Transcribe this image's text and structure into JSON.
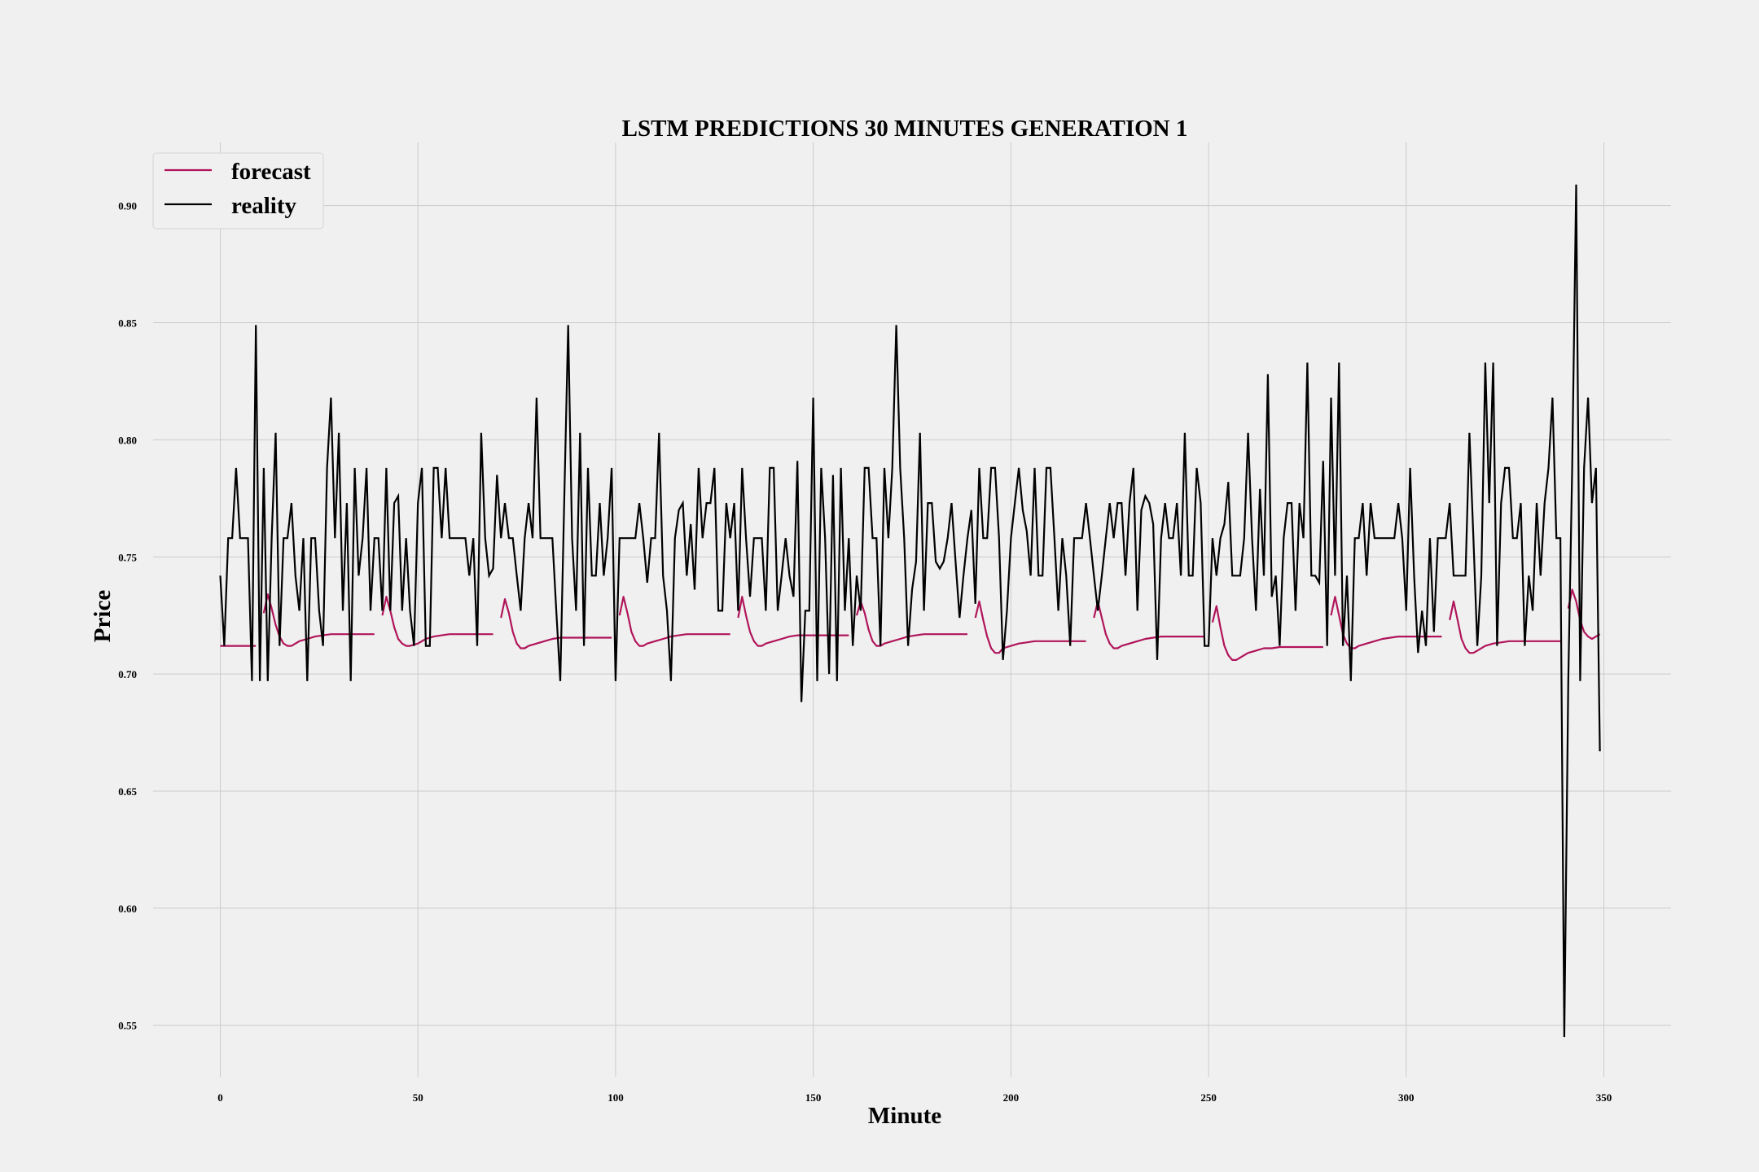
{
  "chart_data": {
    "type": "line",
    "title": "LSTM PREDICTIONS 30 MINUTES GENERATION 1",
    "xlabel": "Minute",
    "ylabel": "Price",
    "xlim": [
      -17,
      367
    ],
    "ylim": [
      0.528,
      0.927
    ],
    "xticks": [
      0,
      50,
      100,
      150,
      200,
      250,
      300,
      350
    ],
    "xtick_labels": [
      "0",
      "50",
      "100",
      "150",
      "200",
      "250",
      "300",
      "350"
    ],
    "yticks": [
      0.55,
      0.6,
      0.65,
      0.7,
      0.75,
      0.8,
      0.85,
      0.9
    ],
    "ytick_labels": [
      "0.55",
      "0.60",
      "0.65",
      "0.70",
      "0.75",
      "0.80",
      "0.85",
      "0.90"
    ],
    "grid": true,
    "legend_position": "top-left",
    "colors": {
      "forecast": "#b0145a",
      "reality": "#000000",
      "background": "#f0f0f0",
      "grid": "#cbcbcb"
    },
    "series": [
      {
        "name": "forecast",
        "segments": [
          {
            "x": [
              0,
              1,
              2,
              3,
              4,
              5,
              6,
              7,
              8,
              9
            ],
            "y": [
              0.712,
              0.712,
              0.712,
              0.712,
              0.712,
              0.712,
              0.712,
              0.712,
              0.712,
              0.712
            ]
          },
          {
            "x": [
              11,
              12,
              13,
              14,
              15,
              16,
              17,
              18,
              19,
              20,
              22,
              24,
              26,
              28,
              30,
              32,
              34,
              36,
              39
            ],
            "y": [
              0.726,
              0.734,
              0.728,
              0.721,
              0.716,
              0.713,
              0.712,
              0.712,
              0.713,
              0.714,
              0.715,
              0.716,
              0.7165,
              0.717,
              0.717,
              0.717,
              0.717,
              0.717,
              0.717
            ]
          },
          {
            "x": [
              41,
              42,
              43,
              44,
              45,
              46,
              47,
              48,
              50,
              52,
              54,
              56,
              58,
              60,
              62,
              65,
              69
            ],
            "y": [
              0.725,
              0.733,
              0.727,
              0.72,
              0.715,
              0.713,
              0.712,
              0.712,
              0.713,
              0.715,
              0.716,
              0.7165,
              0.717,
              0.717,
              0.717,
              0.717,
              0.717
            ]
          },
          {
            "x": [
              71,
              72,
              73,
              74,
              75,
              76,
              77,
              78,
              80,
              82,
              84,
              86,
              88,
              90,
              94,
              99
            ],
            "y": [
              0.724,
              0.732,
              0.726,
              0.718,
              0.713,
              0.711,
              0.711,
              0.712,
              0.713,
              0.714,
              0.715,
              0.7155,
              0.7155,
              0.7155,
              0.7155,
              0.7155
            ]
          },
          {
            "x": [
              101,
              102,
              103,
              104,
              105,
              106,
              107,
              108,
              110,
              112,
              114,
              116,
              118,
              120,
              124,
              129
            ],
            "y": [
              0.725,
              0.733,
              0.726,
              0.718,
              0.714,
              0.712,
              0.712,
              0.713,
              0.714,
              0.715,
              0.716,
              0.7165,
              0.717,
              0.717,
              0.717,
              0.717
            ]
          },
          {
            "x": [
              131,
              132,
              133,
              134,
              135,
              136,
              137,
              138,
              140,
              142,
              144,
              146,
              148,
              150,
              154,
              159
            ],
            "y": [
              0.724,
              0.733,
              0.725,
              0.718,
              0.714,
              0.712,
              0.712,
              0.713,
              0.714,
              0.715,
              0.716,
              0.7165,
              0.7165,
              0.7165,
              0.7165,
              0.7165
            ]
          },
          {
            "x": [
              161,
              162,
              163,
              164,
              165,
              166,
              167,
              168,
              170,
              172,
              174,
              176,
              178,
              180,
              184,
              189
            ],
            "y": [
              0.725,
              0.731,
              0.726,
              0.719,
              0.714,
              0.712,
              0.712,
              0.713,
              0.714,
              0.715,
              0.716,
              0.7165,
              0.717,
              0.717,
              0.717,
              0.717
            ]
          },
          {
            "x": [
              191,
              192,
              193,
              194,
              195,
              196,
              197,
              198,
              200,
              202,
              204,
              206,
              208,
              210,
              214,
              219
            ],
            "y": [
              0.724,
              0.731,
              0.723,
              0.716,
              0.711,
              0.709,
              0.709,
              0.711,
              0.712,
              0.713,
              0.7135,
              0.714,
              0.714,
              0.714,
              0.714,
              0.714
            ]
          },
          {
            "x": [
              221,
              222,
              223,
              224,
              225,
              226,
              227,
              228,
              230,
              232,
              234,
              236,
              238,
              240,
              244,
              249
            ],
            "y": [
              0.724,
              0.731,
              0.724,
              0.717,
              0.713,
              0.711,
              0.711,
              0.712,
              0.713,
              0.714,
              0.715,
              0.7155,
              0.716,
              0.716,
              0.716,
              0.716
            ]
          },
          {
            "x": [
              251,
              252,
              253,
              254,
              255,
              256,
              257,
              258,
              260,
              262,
              264,
              266,
              268,
              270,
              274,
              279
            ],
            "y": [
              0.722,
              0.729,
              0.72,
              0.712,
              0.708,
              0.706,
              0.706,
              0.707,
              0.709,
              0.71,
              0.711,
              0.711,
              0.7115,
              0.7115,
              0.7115,
              0.7115
            ]
          },
          {
            "x": [
              281,
              282,
              283,
              284,
              285,
              286,
              287,
              288,
              290,
              292,
              294,
              296,
              298,
              300,
              304,
              309
            ],
            "y": [
              0.725,
              0.733,
              0.725,
              0.717,
              0.713,
              0.711,
              0.711,
              0.712,
              0.713,
              0.714,
              0.715,
              0.7155,
              0.716,
              0.716,
              0.716,
              0.716
            ]
          },
          {
            "x": [
              311,
              312,
              313,
              314,
              315,
              316,
              317,
              318,
              320,
              322,
              324,
              326,
              328,
              330,
              334,
              339
            ],
            "y": [
              0.723,
              0.731,
              0.723,
              0.715,
              0.711,
              0.709,
              0.709,
              0.71,
              0.712,
              0.713,
              0.7135,
              0.714,
              0.714,
              0.714,
              0.714,
              0.714
            ]
          },
          {
            "x": [
              341,
              342,
              343,
              344,
              345,
              346,
              347,
              348,
              349
            ],
            "y": [
              0.728,
              0.736,
              0.731,
              0.723,
              0.718,
              0.716,
              0.715,
              0.716,
              0.717
            ]
          }
        ]
      },
      {
        "name": "reality",
        "x_start": 0,
        "y": [
          0.742,
          0.712,
          0.758,
          0.758,
          0.788,
          0.758,
          0.758,
          0.758,
          0.697,
          0.849,
          0.697,
          0.788,
          0.697,
          0.758,
          0.803,
          0.712,
          0.758,
          0.758,
          0.773,
          0.742,
          0.727,
          0.758,
          0.697,
          0.758,
          0.758,
          0.727,
          0.712,
          0.788,
          0.818,
          0.758,
          0.803,
          0.727,
          0.773,
          0.697,
          0.788,
          0.742,
          0.758,
          0.788,
          0.727,
          0.758,
          0.758,
          0.727,
          0.788,
          0.727,
          0.773,
          0.776,
          0.727,
          0.758,
          0.727,
          0.712,
          0.773,
          0.788,
          0.712,
          0.712,
          0.788,
          0.788,
          0.758,
          0.788,
          0.758,
          0.758,
          0.758,
          0.758,
          0.758,
          0.742,
          0.758,
          0.712,
          0.803,
          0.758,
          0.742,
          0.745,
          0.785,
          0.758,
          0.773,
          0.758,
          0.758,
          0.742,
          0.727,
          0.758,
          0.773,
          0.758,
          0.818,
          0.758,
          0.758,
          0.758,
          0.758,
          0.727,
          0.697,
          0.773,
          0.849,
          0.758,
          0.727,
          0.803,
          0.712,
          0.788,
          0.742,
          0.742,
          0.773,
          0.742,
          0.758,
          0.788,
          0.697,
          0.758,
          0.758,
          0.758,
          0.758,
          0.758,
          0.773,
          0.758,
          0.739,
          0.758,
          0.758,
          0.803,
          0.742,
          0.727,
          0.697,
          0.758,
          0.77,
          0.773,
          0.742,
          0.764,
          0.736,
          0.788,
          0.758,
          0.773,
          0.773,
          0.788,
          0.727,
          0.727,
          0.773,
          0.758,
          0.773,
          0.727,
          0.788,
          0.758,
          0.733,
          0.758,
          0.758,
          0.758,
          0.727,
          0.788,
          0.788,
          0.727,
          0.742,
          0.758,
          0.742,
          0.733,
          0.791,
          0.688,
          0.727,
          0.727,
          0.818,
          0.697,
          0.788,
          0.758,
          0.7,
          0.785,
          0.697,
          0.788,
          0.727,
          0.758,
          0.712,
          0.742,
          0.727,
          0.788,
          0.788,
          0.758,
          0.758,
          0.712,
          0.788,
          0.758,
          0.788,
          0.849,
          0.788,
          0.758,
          0.712,
          0.736,
          0.748,
          0.803,
          0.727,
          0.773,
          0.773,
          0.748,
          0.745,
          0.748,
          0.758,
          0.773,
          0.748,
          0.724,
          0.742,
          0.758,
          0.77,
          0.73,
          0.788,
          0.758,
          0.758,
          0.788,
          0.788,
          0.758,
          0.706,
          0.727,
          0.758,
          0.773,
          0.788,
          0.77,
          0.761,
          0.742,
          0.788,
          0.742,
          0.742,
          0.788,
          0.788,
          0.758,
          0.727,
          0.758,
          0.742,
          0.712,
          0.758,
          0.758,
          0.758,
          0.773,
          0.758,
          0.742,
          0.727,
          0.742,
          0.758,
          0.773,
          0.758,
          0.773,
          0.773,
          0.742,
          0.773,
          0.788,
          0.727,
          0.77,
          0.776,
          0.773,
          0.764,
          0.706,
          0.758,
          0.773,
          0.758,
          0.758,
          0.773,
          0.742,
          0.803,
          0.742,
          0.742,
          0.788,
          0.773,
          0.712,
          0.712,
          0.758,
          0.742,
          0.758,
          0.764,
          0.782,
          0.742,
          0.742,
          0.742,
          0.758,
          0.803,
          0.758,
          0.727,
          0.779,
          0.742,
          0.828,
          0.733,
          0.742,
          0.712,
          0.758,
          0.773,
          0.773,
          0.727,
          0.773,
          0.758,
          0.833,
          0.742,
          0.742,
          0.739,
          0.791,
          0.712,
          0.818,
          0.742,
          0.833,
          0.712,
          0.742,
          0.697,
          0.758,
          0.758,
          0.773,
          0.742,
          0.773,
          0.758,
          0.758,
          0.758,
          0.758,
          0.758,
          0.758,
          0.773,
          0.758,
          0.727,
          0.788,
          0.742,
          0.709,
          0.727,
          0.712,
          0.758,
          0.718,
          0.758,
          0.758,
          0.758,
          0.773,
          0.742,
          0.742,
          0.742,
          0.742,
          0.803,
          0.758,
          0.712,
          0.742,
          0.833,
          0.773,
          0.833,
          0.712,
          0.773,
          0.788,
          0.788,
          0.758,
          0.758,
          0.773,
          0.712,
          0.742,
          0.727,
          0.773,
          0.742,
          0.773,
          0.788,
          0.818,
          0.758,
          0.758,
          0.545,
          0.697,
          0.788,
          0.909,
          0.697,
          0.788,
          0.818,
          0.773,
          0.788,
          0.667
        ]
      }
    ]
  }
}
